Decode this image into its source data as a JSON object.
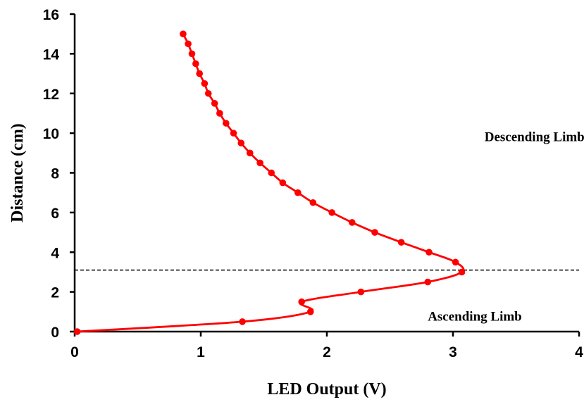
{
  "chart_data": {
    "type": "line",
    "xlabel": "LED Output (V)",
    "ylabel": "Distance (cm)",
    "xlim": [
      0,
      4
    ],
    "ylim": [
      0,
      16
    ],
    "x_ticks": [
      "0",
      "1",
      "2",
      "3",
      "4"
    ],
    "y_ticks": [
      "0",
      "2",
      "4",
      "6",
      "8",
      "10",
      "12",
      "14",
      "16"
    ],
    "grid": false,
    "series": [
      {
        "color": "#ff0000",
        "marker": "circle",
        "points": [
          {
            "x": 0.02,
            "y": 0.0
          },
          {
            "x": 1.33,
            "y": 0.5
          },
          {
            "x": 1.87,
            "y": 1.0
          },
          {
            "x": 1.8,
            "y": 1.5
          },
          {
            "x": 2.27,
            "y": 2.0
          },
          {
            "x": 2.8,
            "y": 2.5
          },
          {
            "x": 3.07,
            "y": 3.0
          },
          {
            "x": 3.02,
            "y": 3.5
          },
          {
            "x": 2.81,
            "y": 4.0
          },
          {
            "x": 2.59,
            "y": 4.5
          },
          {
            "x": 2.38,
            "y": 5.0
          },
          {
            "x": 2.2,
            "y": 5.5
          },
          {
            "x": 2.04,
            "y": 6.0
          },
          {
            "x": 1.89,
            "y": 6.5
          },
          {
            "x": 1.77,
            "y": 7.0
          },
          {
            "x": 1.65,
            "y": 7.5
          },
          {
            "x": 1.56,
            "y": 8.0
          },
          {
            "x": 1.47,
            "y": 8.5
          },
          {
            "x": 1.39,
            "y": 9.0
          },
          {
            "x": 1.32,
            "y": 9.5
          },
          {
            "x": 1.26,
            "y": 10.0
          },
          {
            "x": 1.2,
            "y": 10.5
          },
          {
            "x": 1.15,
            "y": 11.0
          },
          {
            "x": 1.11,
            "y": 11.5
          },
          {
            "x": 1.06,
            "y": 12.0
          },
          {
            "x": 1.03,
            "y": 12.5
          },
          {
            "x": 0.99,
            "y": 13.0
          },
          {
            "x": 0.96,
            "y": 13.5
          },
          {
            "x": 0.93,
            "y": 14.0
          },
          {
            "x": 0.9,
            "y": 14.5
          },
          {
            "x": 0.86,
            "y": 15.0
          }
        ]
      }
    ],
    "reference_line": {
      "y": 3.1,
      "style": "dashed",
      "color": "#000000"
    },
    "annotations": [
      {
        "text": "Descending Limb",
        "x": 3.25,
        "y": 9.6
      },
      {
        "text": "Ascending Limb",
        "x": 2.8,
        "y": 0.55
      }
    ]
  }
}
